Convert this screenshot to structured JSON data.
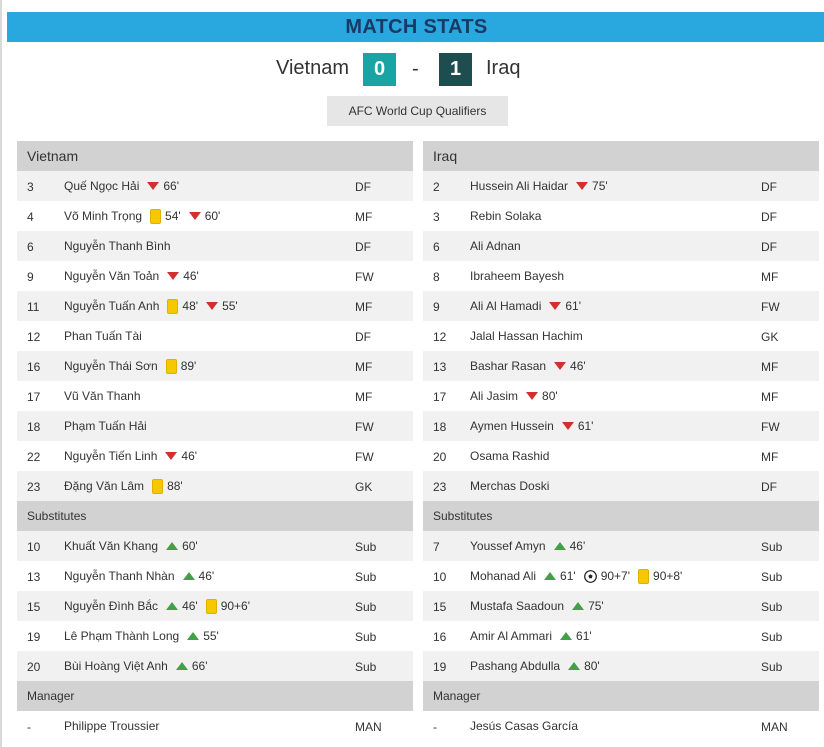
{
  "header": {
    "title": "MATCH STATS"
  },
  "match": {
    "home_team": "Vietnam",
    "away_team": "Iraq",
    "home_score": "0",
    "away_score": "1",
    "separator": "-",
    "competition": "AFC World Cup Qualifiers"
  },
  "colors": {
    "title_bar": "#29a8e0",
    "title_text": "#1a3a66",
    "home_score_bg": "#1aa3a3",
    "away_score_bg": "#1d4d4f",
    "sub_off": "#d32f2f",
    "sub_on": "#43a047",
    "yellow_card": "#f6c800"
  },
  "home": {
    "team_header": "Vietnam",
    "starters": [
      {
        "num": "3",
        "name": "Quế Ngọc Hải",
        "pos": "DF",
        "events": [
          {
            "icon": "sub-off-icon",
            "min": "66'"
          }
        ]
      },
      {
        "num": "4",
        "name": "Võ Minh Trọng",
        "pos": "MF",
        "events": [
          {
            "icon": "yellow-card-icon",
            "min": "54'"
          },
          {
            "icon": "sub-off-icon",
            "min": "60'"
          }
        ]
      },
      {
        "num": "6",
        "name": "Nguyễn Thanh Bình",
        "pos": "DF",
        "events": []
      },
      {
        "num": "9",
        "name": "Nguyễn Văn Toản",
        "pos": "FW",
        "events": [
          {
            "icon": "sub-off-icon",
            "min": "46'"
          }
        ]
      },
      {
        "num": "11",
        "name": "Nguyễn Tuấn Anh",
        "pos": "MF",
        "events": [
          {
            "icon": "yellow-card-icon",
            "min": "48'"
          },
          {
            "icon": "sub-off-icon",
            "min": "55'"
          }
        ]
      },
      {
        "num": "12",
        "name": "Phan Tuấn Tài",
        "pos": "DF",
        "events": []
      },
      {
        "num": "16",
        "name": "Nguyễn Thái Sơn",
        "pos": "MF",
        "events": [
          {
            "icon": "yellow-card-icon",
            "min": "89'"
          }
        ]
      },
      {
        "num": "17",
        "name": "Vũ Văn Thanh",
        "pos": "MF",
        "events": []
      },
      {
        "num": "18",
        "name": "Phạm Tuấn Hải",
        "pos": "FW",
        "events": []
      },
      {
        "num": "22",
        "name": "Nguyễn Tiến Linh",
        "pos": "FW",
        "events": [
          {
            "icon": "sub-off-icon",
            "min": "46'"
          }
        ]
      },
      {
        "num": "23",
        "name": "Đặng Văn Lâm",
        "pos": "GK",
        "events": [
          {
            "icon": "yellow-card-icon",
            "min": "88'"
          }
        ]
      }
    ],
    "subs_header": "Substitutes",
    "subs": [
      {
        "num": "10",
        "name": "Khuất Văn Khang",
        "pos": "Sub",
        "events": [
          {
            "icon": "sub-on-icon",
            "min": "60'"
          }
        ]
      },
      {
        "num": "13",
        "name": "Nguyễn Thanh Nhàn",
        "pos": "Sub",
        "events": [
          {
            "icon": "sub-on-icon",
            "min": "46'"
          }
        ]
      },
      {
        "num": "15",
        "name": "Nguyễn Đình Bắc",
        "pos": "Sub",
        "events": [
          {
            "icon": "sub-on-icon",
            "min": "46'"
          },
          {
            "icon": "yellow-card-icon",
            "min": "90+6'"
          }
        ]
      },
      {
        "num": "19",
        "name": "Lê Phạm Thành Long",
        "pos": "Sub",
        "events": [
          {
            "icon": "sub-on-icon",
            "min": "55'"
          }
        ]
      },
      {
        "num": "20",
        "name": "Bùi Hoàng Việt Anh",
        "pos": "Sub",
        "events": [
          {
            "icon": "sub-on-icon",
            "min": "66'"
          }
        ]
      }
    ],
    "manager_header": "Manager",
    "manager": {
      "num": "-",
      "name": "Philippe Troussier",
      "pos": "MAN"
    }
  },
  "away": {
    "team_header": "Iraq",
    "starters": [
      {
        "num": "2",
        "name": "Hussein Ali Haidar",
        "pos": "DF",
        "events": [
          {
            "icon": "sub-off-icon",
            "min": "75'"
          }
        ]
      },
      {
        "num": "3",
        "name": "Rebin Solaka",
        "pos": "DF",
        "events": []
      },
      {
        "num": "6",
        "name": "Ali Adnan",
        "pos": "DF",
        "events": []
      },
      {
        "num": "8",
        "name": "Ibraheem Bayesh",
        "pos": "MF",
        "events": []
      },
      {
        "num": "9",
        "name": "Ali Al Hamadi",
        "pos": "FW",
        "events": [
          {
            "icon": "sub-off-icon",
            "min": "61'"
          }
        ]
      },
      {
        "num": "12",
        "name": "Jalal Hassan Hachim",
        "pos": "GK",
        "events": []
      },
      {
        "num": "13",
        "name": "Bashar Rasan",
        "pos": "MF",
        "events": [
          {
            "icon": "sub-off-icon",
            "min": "46'"
          }
        ]
      },
      {
        "num": "17",
        "name": "Ali Jasim",
        "pos": "MF",
        "events": [
          {
            "icon": "sub-off-icon",
            "min": "80'"
          }
        ]
      },
      {
        "num": "18",
        "name": "Aymen Hussein",
        "pos": "FW",
        "events": [
          {
            "icon": "sub-off-icon",
            "min": "61'"
          }
        ]
      },
      {
        "num": "20",
        "name": "Osama Rashid",
        "pos": "MF",
        "events": []
      },
      {
        "num": "23",
        "name": "Merchas Doski",
        "pos": "DF",
        "events": []
      }
    ],
    "subs_header": "Substitutes",
    "subs": [
      {
        "num": "7",
        "name": "Youssef Amyn",
        "pos": "Sub",
        "events": [
          {
            "icon": "sub-on-icon",
            "min": "46'"
          }
        ]
      },
      {
        "num": "10",
        "name": "Mohanad Ali",
        "pos": "Sub",
        "events": [
          {
            "icon": "sub-on-icon",
            "min": "61'"
          },
          {
            "icon": "goal-icon",
            "min": "90+7'"
          },
          {
            "icon": "yellow-card-icon",
            "min": "90+8'"
          }
        ]
      },
      {
        "num": "15",
        "name": "Mustafa Saadoun",
        "pos": "Sub",
        "events": [
          {
            "icon": "sub-on-icon",
            "min": "75'"
          }
        ]
      },
      {
        "num": "16",
        "name": "Amir Al Ammari",
        "pos": "Sub",
        "events": [
          {
            "icon": "sub-on-icon",
            "min": "61'"
          }
        ]
      },
      {
        "num": "19",
        "name": "Pashang Abdulla",
        "pos": "Sub",
        "events": [
          {
            "icon": "sub-on-icon",
            "min": "80'"
          }
        ]
      }
    ],
    "manager_header": "Manager",
    "manager": {
      "num": "-",
      "name": "Jesús Casas García",
      "pos": "MAN"
    }
  }
}
